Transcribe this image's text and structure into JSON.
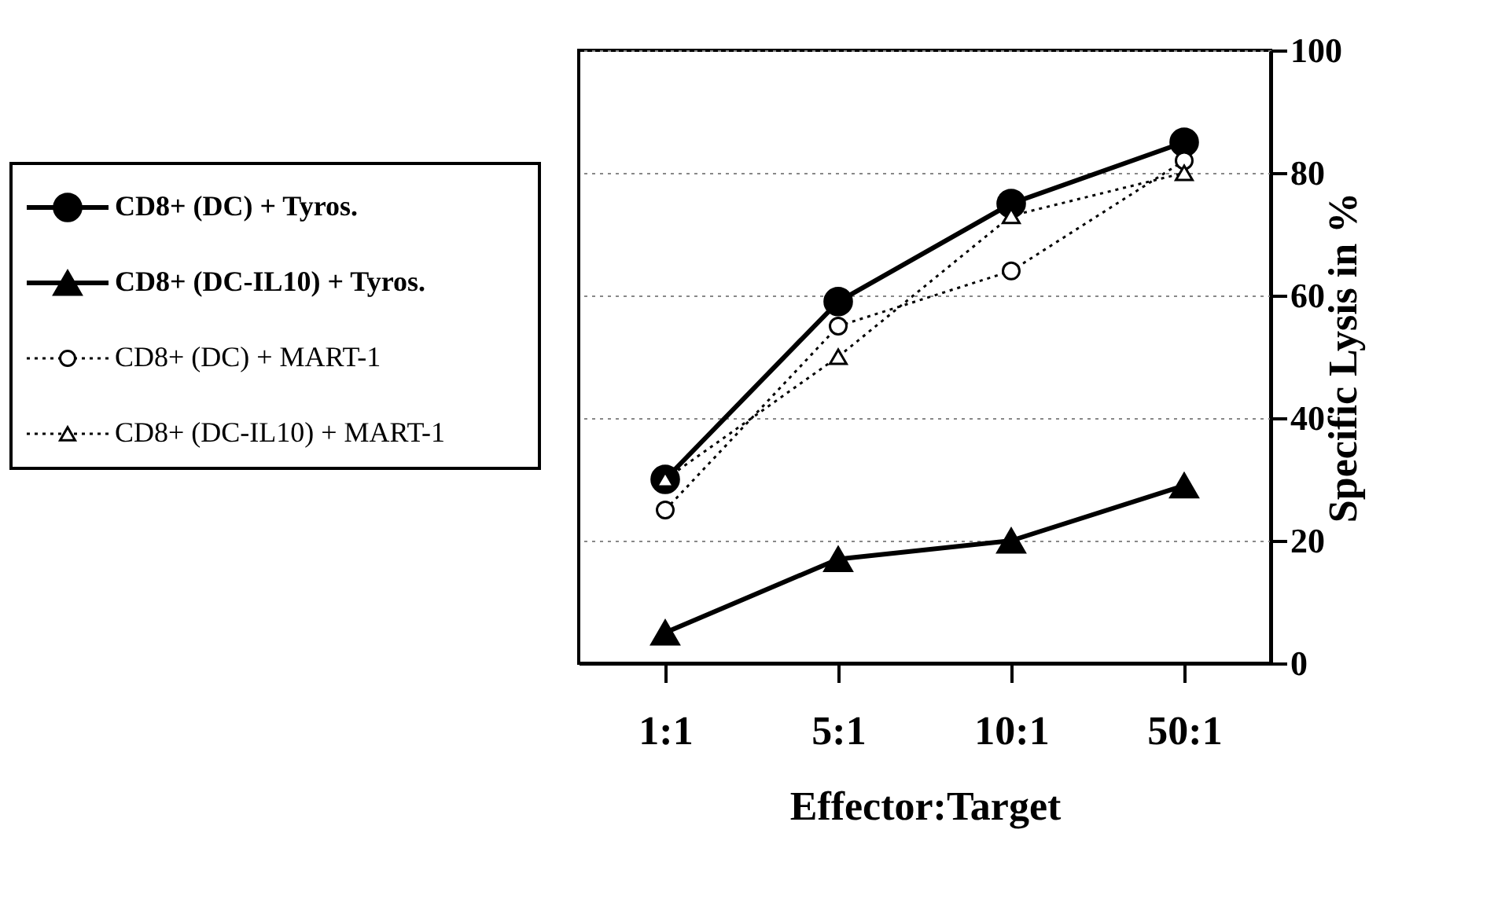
{
  "chart_data": {
    "type": "line",
    "xlabel": "Effector:Target",
    "ylabel": "Specific Lysis in %",
    "categories": [
      "1:1",
      "5:1",
      "10:1",
      "50:1"
    ],
    "series": [
      {
        "name": "CD8+ (DC) + Tyros.",
        "color": "#000000",
        "values": [
          30,
          59,
          75,
          85
        ],
        "marker": "circle",
        "line_style": "solid"
      },
      {
        "name": "CD8+ (DC-IL10) + Tyros.",
        "color": "#000000",
        "values": [
          5,
          17,
          20,
          29
        ],
        "marker": "triangle",
        "line_style": "solid"
      },
      {
        "name": "CD8+ (DC) + MART-1",
        "color": "#000000",
        "values": [
          25,
          55,
          64,
          82
        ],
        "marker": "circle",
        "line_style": "dotted"
      },
      {
        "name": "CD8+ (DC-IL10) + MART-1",
        "color": "#000000",
        "values": [
          30,
          50,
          73,
          80
        ],
        "marker": "triangle",
        "line_style": "dotted"
      }
    ],
    "ylim": [
      0,
      100
    ],
    "yticks": [
      0,
      20,
      40,
      60,
      80,
      100
    ],
    "grid": "y",
    "legend": "left"
  }
}
